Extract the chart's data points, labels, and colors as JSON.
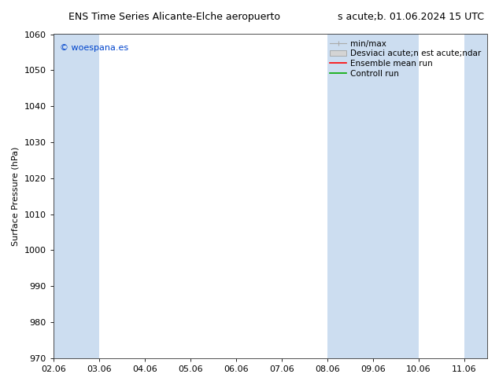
{
  "title_left": "ENS Time Series Alicante-Elche aeropuerto",
  "title_right": "s acute;b. 01.06.2024 15 UTC",
  "ylabel": "Surface Pressure (hPa)",
  "ylim": [
    970,
    1060
  ],
  "yticks": [
    970,
    980,
    990,
    1000,
    1010,
    1020,
    1030,
    1040,
    1050,
    1060
  ],
  "xlim": [
    0,
    9
  ],
  "xtick_labels": [
    "02.06",
    "03.06",
    "04.06",
    "05.06",
    "06.06",
    "07.06",
    "08.06",
    "09.06",
    "10.06",
    "11.06"
  ],
  "xtick_positions": [
    0,
    1,
    2,
    3,
    4,
    5,
    6,
    7,
    8,
    9
  ],
  "shaded_bands": [
    {
      "xmin": 0,
      "xmax": 1
    },
    {
      "xmin": 6,
      "xmax": 7
    },
    {
      "xmin": 7,
      "xmax": 8
    },
    {
      "xmin": 9,
      "xmax": 9.5
    }
  ],
  "band_color": "#ccddf0",
  "watermark_text": "© woespana.es",
  "watermark_color": "#0044cc",
  "bg_color": "#ffffff",
  "plot_bg_color": "#ffffff",
  "font_size": 8,
  "title_font_size": 9,
  "legend_fontsize": 7.5,
  "legend_min_max_color": "#aaaaaa",
  "legend_std_color": "#cccccc",
  "legend_ens_color": "#ff0000",
  "legend_ctrl_color": "#00aa00",
  "legend_min_max_label": "min/max",
  "legend_std_label": "Desviaci acute;n est acute;ndar",
  "legend_ens_label": "Ensemble mean run",
  "legend_ctrl_label": "Controll run"
}
